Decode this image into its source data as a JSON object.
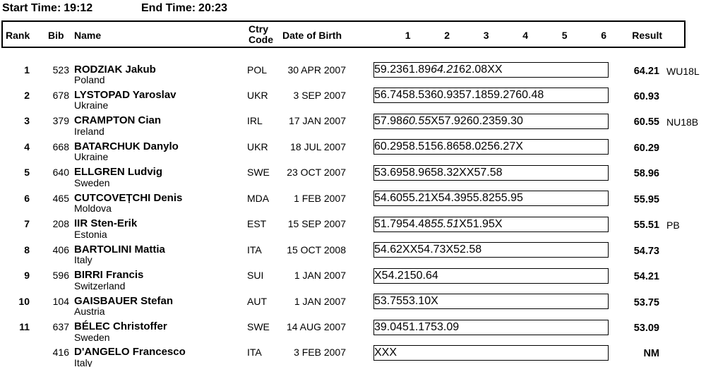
{
  "meta": {
    "start_label": "Start Time:",
    "start_value": "19:12",
    "end_label": "End Time:",
    "end_value": "20:23"
  },
  "table": {
    "columns": {
      "rank": "Rank",
      "bib": "Bib",
      "name": "Name",
      "ctry_line1": "Ctry",
      "ctry_line2": "Code",
      "dob": "Date of Birth",
      "attempts": [
        "1",
        "2",
        "3",
        "4",
        "5",
        "6"
      ],
      "result": "Result"
    },
    "rows": [
      {
        "rank": "1",
        "bib": "523",
        "name": "RODZIAK Jakub",
        "country": "Poland",
        "ctry_code": "POL",
        "dob": "30 APR 2007",
        "attempts": [
          "59.23",
          "61.89",
          "64.21",
          "62.08",
          "X",
          "X"
        ],
        "italic_attempt": 2,
        "result": "64.21",
        "remark": "WU18L"
      },
      {
        "rank": "2",
        "bib": "678",
        "name": "LYSTOPAD Yaroslav",
        "country": "Ukraine",
        "ctry_code": "UKR",
        "dob": "3 SEP 2007",
        "attempts": [
          "56.74",
          "58.53",
          "60.93",
          "57.18",
          "59.27",
          "60.48"
        ],
        "italic_attempt": null,
        "result": "60.93",
        "remark": ""
      },
      {
        "rank": "3",
        "bib": "379",
        "name": "CRAMPTON Cian",
        "country": "Ireland",
        "ctry_code": "IRL",
        "dob": "17 JAN 2007",
        "attempts": [
          "57.98",
          "60.55",
          "X",
          "57.92",
          "60.23",
          "59.30"
        ],
        "italic_attempt": 1,
        "result": "60.55",
        "remark": "NU18B"
      },
      {
        "rank": "4",
        "bib": "668",
        "name": "BATARCHUK Danylo",
        "country": "Ukraine",
        "ctry_code": "UKR",
        "dob": "18 JUL 2007",
        "attempts": [
          "60.29",
          "58.51",
          "56.86",
          "58.02",
          "56.27",
          "X"
        ],
        "italic_attempt": null,
        "result": "60.29",
        "remark": ""
      },
      {
        "rank": "5",
        "bib": "640",
        "name": "ELLGREN Ludvig",
        "country": "Sweden",
        "ctry_code": "SWE",
        "dob": "23 OCT 2007",
        "attempts": [
          "53.69",
          "58.96",
          "58.32",
          "X",
          "X",
          "57.58"
        ],
        "italic_attempt": null,
        "result": "58.96",
        "remark": ""
      },
      {
        "rank": "6",
        "bib": "465",
        "name": "CUTCOVEȚCHI Denis",
        "country": "Moldova",
        "ctry_code": "MDA",
        "dob": "1 FEB 2007",
        "attempts": [
          "54.60",
          "55.21",
          "X",
          "54.39",
          "55.82",
          "55.95"
        ],
        "italic_attempt": null,
        "result": "55.95",
        "remark": ""
      },
      {
        "rank": "7",
        "bib": "208",
        "name": "IIR Sten-Erik",
        "country": "Estonia",
        "ctry_code": "EST",
        "dob": "15 SEP 2007",
        "attempts": [
          "51.79",
          "54.48",
          "55.51",
          "X",
          "51.95",
          "X"
        ],
        "italic_attempt": 2,
        "result": "55.51",
        "remark": "PB"
      },
      {
        "rank": "8",
        "bib": "406",
        "name": "BARTOLINI Mattia",
        "country": "Italy",
        "ctry_code": "ITA",
        "dob": "15 OCT 2008",
        "attempts": [
          "54.62",
          "X",
          "X",
          "54.73",
          "X",
          "52.58"
        ],
        "italic_attempt": null,
        "result": "54.73",
        "remark": ""
      },
      {
        "rank": "9",
        "bib": "596",
        "name": "BIRRI Francis",
        "country": "Switzerland",
        "ctry_code": "SUI",
        "dob": "1 JAN 2007",
        "attempts": [
          "X",
          "54.21",
          "50.64",
          "",
          "",
          ""
        ],
        "italic_attempt": null,
        "result": "54.21",
        "remark": ""
      },
      {
        "rank": "10",
        "bib": "104",
        "name": "GAISBAUER Stefan",
        "country": "Austria",
        "ctry_code": "AUT",
        "dob": "1 JAN 2007",
        "attempts": [
          "53.75",
          "53.10",
          "X",
          "",
          "",
          ""
        ],
        "italic_attempt": null,
        "result": "53.75",
        "remark": ""
      },
      {
        "rank": "11",
        "bib": "637",
        "name": "BÉLEC Christoffer",
        "country": "Sweden",
        "ctry_code": "SWE",
        "dob": "14 AUG 2007",
        "attempts": [
          "39.04",
          "51.17",
          "53.09",
          "",
          "",
          ""
        ],
        "italic_attempt": null,
        "result": "53.09",
        "remark": ""
      },
      {
        "rank": "",
        "bib": "416",
        "name": "D'ANGELO Francesco",
        "country": "Italy",
        "ctry_code": "ITA",
        "dob": "3 FEB 2007",
        "attempts": [
          "X",
          "X",
          "X",
          "",
          "",
          ""
        ],
        "italic_attempt": null,
        "result": "NM",
        "remark": ""
      }
    ]
  }
}
